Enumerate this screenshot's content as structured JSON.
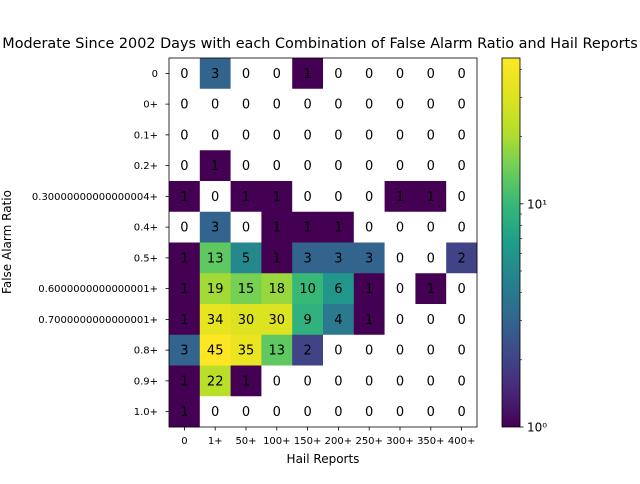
{
  "chart_data": {
    "type": "heatmap",
    "title": "Moderate Since 2002 Days with each Combination of False Alarm Ratio and Hail Reports",
    "xlabel": "Hail Reports",
    "ylabel": "False Alarm Ratio",
    "x_categories": [
      "0",
      "1+",
      "50+",
      "100+",
      "150+",
      "200+",
      "250+",
      "300+",
      "350+",
      "400+"
    ],
    "y_categories": [
      "0",
      "0+",
      "0.1+",
      "0.2+",
      "0.30000000000000004+",
      "0.4+",
      "0.5+",
      "0.6000000000000001+",
      "0.7000000000000001+",
      "0.8+",
      "0.9+",
      "1.0+"
    ],
    "values": [
      [
        0,
        3,
        0,
        0,
        1,
        0,
        0,
        0,
        0,
        0
      ],
      [
        0,
        0,
        0,
        0,
        0,
        0,
        0,
        0,
        0,
        0
      ],
      [
        0,
        0,
        0,
        0,
        0,
        0,
        0,
        0,
        0,
        0
      ],
      [
        0,
        1,
        0,
        0,
        0,
        0,
        0,
        0,
        0,
        0
      ],
      [
        1,
        0,
        1,
        1,
        0,
        0,
        0,
        1,
        1,
        0
      ],
      [
        0,
        3,
        0,
        1,
        1,
        1,
        0,
        0,
        0,
        0
      ],
      [
        1,
        13,
        5,
        1,
        3,
        3,
        3,
        0,
        0,
        2
      ],
      [
        1,
        19,
        15,
        18,
        10,
        6,
        1,
        0,
        1,
        0
      ],
      [
        1,
        34,
        30,
        30,
        9,
        4,
        1,
        0,
        0,
        0
      ],
      [
        3,
        45,
        35,
        13,
        2,
        0,
        0,
        0,
        0,
        0
      ],
      [
        1,
        22,
        1,
        0,
        0,
        0,
        0,
        0,
        0,
        0
      ],
      [
        1,
        0,
        0,
        0,
        0,
        0,
        0,
        0,
        0,
        0
      ]
    ],
    "colorbar": {
      "scale": "log",
      "colormap": "viridis",
      "range": [
        1,
        45
      ],
      "ticks": [
        {
          "value": 1,
          "label": "10⁰"
        },
        {
          "value": 10,
          "label": "10¹"
        }
      ]
    },
    "zero_color": "#ffffff",
    "grid": false
  }
}
